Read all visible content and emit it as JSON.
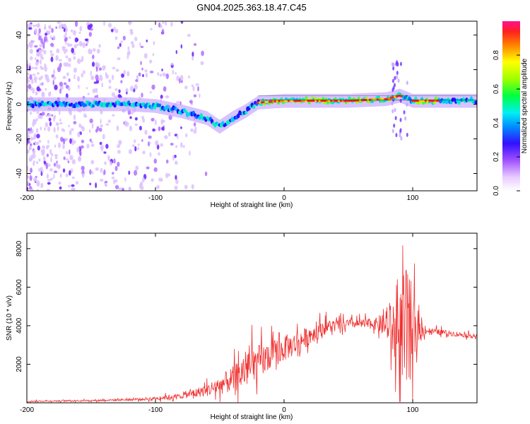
{
  "title": "GN04.2025.363.18.47.C45",
  "colors": {
    "frame": "#000000",
    "snr_line": "#f03030",
    "background": "#ffffff"
  },
  "chart_data": [
    {
      "type": "heatmap",
      "name": "spectrogram",
      "xlabel": "Height of straight line (km)",
      "ylabel": "Frequency (Hz)",
      "xlim": [
        -200,
        150
      ],
      "ylim": [
        -50,
        48
      ],
      "x_ticks": [
        -200,
        -100,
        0,
        100
      ],
      "y_ticks": [
        -40,
        -20,
        0,
        20,
        40
      ],
      "ridge": [
        {
          "x": -200,
          "y": 0
        },
        {
          "x": -150,
          "y": 0
        },
        {
          "x": -120,
          "y": 0
        },
        {
          "x": -100,
          "y": -1
        },
        {
          "x": -80,
          "y": -4
        },
        {
          "x": -60,
          "y": -8
        },
        {
          "x": -50,
          "y": -13
        },
        {
          "x": -40,
          "y": -8
        },
        {
          "x": -30,
          "y": -4
        },
        {
          "x": -20,
          "y": 1
        },
        {
          "x": 0,
          "y": 2
        },
        {
          "x": 50,
          "y": 2
        },
        {
          "x": 80,
          "y": 3
        },
        {
          "x": 90,
          "y": 5
        },
        {
          "x": 100,
          "y": 2
        },
        {
          "x": 150,
          "y": 2
        }
      ],
      "hot_segments": [
        [
          -20,
          92
        ],
        [
          100,
          120
        ]
      ],
      "scatter_region_x": [
        -200,
        -60
      ],
      "colorbar": {
        "label": "Normalized spectral amplitude",
        "ticks": [
          "0.0",
          "0.2",
          "0.4",
          "0.6",
          "0.8"
        ],
        "tick_values": [
          0.0,
          0.2,
          0.4,
          0.6,
          0.8
        ],
        "range": [
          0,
          1
        ]
      }
    },
    {
      "type": "line",
      "name": "snr",
      "xlabel": "Height of straight line (km)",
      "ylabel": "SNR (10 * v/v)",
      "xlim": [
        -200,
        150
      ],
      "ylim": [
        0,
        8800
      ],
      "x_ticks": [
        -200,
        -100,
        0,
        100
      ],
      "y_ticks": [
        2000,
        4000,
        6000,
        8000
      ],
      "envelope": [
        {
          "x": -200,
          "mean": 80,
          "spread": 60
        },
        {
          "x": -150,
          "mean": 120,
          "spread": 80
        },
        {
          "x": -110,
          "mean": 180,
          "spread": 140
        },
        {
          "x": -80,
          "mean": 350,
          "spread": 300
        },
        {
          "x": -60,
          "mean": 650,
          "spread": 700
        },
        {
          "x": -40,
          "mean": 1200,
          "spread": 1500
        },
        {
          "x": -25,
          "mean": 1900,
          "spread": 2200
        },
        {
          "x": -10,
          "mean": 2500,
          "spread": 1600
        },
        {
          "x": 10,
          "mean": 3100,
          "spread": 1300
        },
        {
          "x": 30,
          "mean": 3900,
          "spread": 900
        },
        {
          "x": 50,
          "mean": 4100,
          "spread": 500
        },
        {
          "x": 70,
          "mean": 4100,
          "spread": 600
        },
        {
          "x": 80,
          "mean": 4000,
          "spread": 1500
        },
        {
          "x": 88,
          "mean": 3600,
          "spread": 5000
        },
        {
          "x": 96,
          "mean": 3600,
          "spread": 8000
        },
        {
          "x": 104,
          "mean": 3800,
          "spread": 1500
        },
        {
          "x": 110,
          "mean": 3750,
          "spread": 400
        },
        {
          "x": 130,
          "mean": 3600,
          "spread": 300
        },
        {
          "x": 150,
          "mean": 3450,
          "spread": 250
        }
      ]
    }
  ]
}
